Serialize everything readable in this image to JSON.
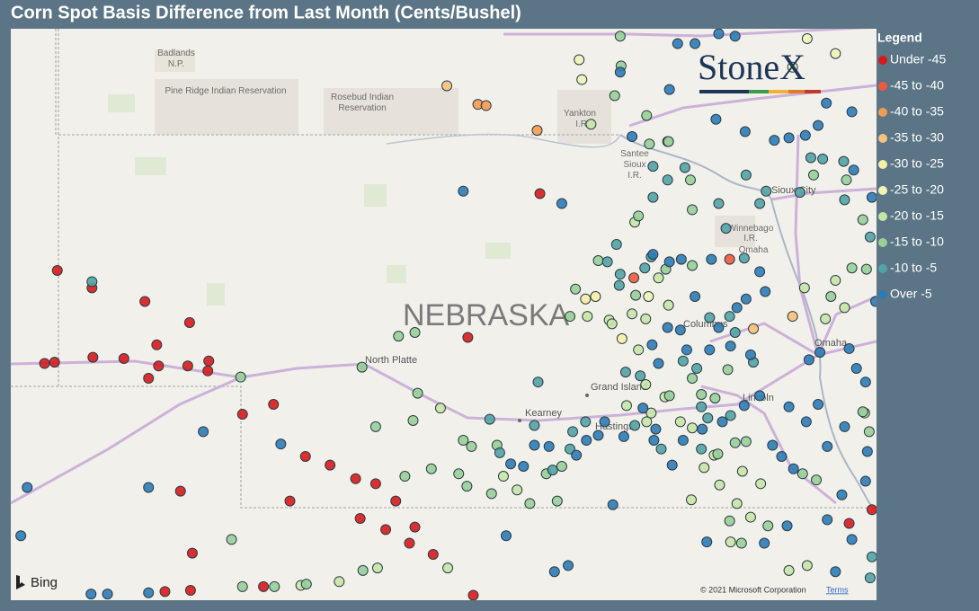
{
  "title": "Corn Spot Basis Difference from Last Month (Cents/Bushel)",
  "legend": {
    "title": "Legend",
    "items": [
      {
        "label": "Under -45",
        "color": "#d7191c"
      },
      {
        "label": "-45 to -40",
        "color": "#ef5a3c"
      },
      {
        "label": "-40 to -35",
        "color": "#f59a52"
      },
      {
        "label": "-35 to -30",
        "color": "#f8c27a"
      },
      {
        "label": "-30 to -25",
        "color": "#f7eeaa"
      },
      {
        "label": "-25 to -20",
        "color": "#eef4b8"
      },
      {
        "label": "-20 to -15",
        "color": "#c6e6a6"
      },
      {
        "label": "-15 to -10",
        "color": "#97cf98"
      },
      {
        "label": "-10 to -5",
        "color": "#52a3a6"
      },
      {
        "label": "Over -5",
        "color": "#2c7bb6"
      }
    ]
  },
  "logo": "StoneX",
  "attribution": {
    "provider": "Bing",
    "copyright": "© 2021 Microsoft Corporation",
    "terms": "Terms"
  },
  "map": {
    "bounds": {
      "west": -104.57,
      "east": -95.08,
      "north": 43.86,
      "south": 39.25
    },
    "places": [
      {
        "label": "Badlands"
      },
      {
        "label": "N.P."
      },
      {
        "label": "Pine Ridge Indian Reservation"
      },
      {
        "label": "Rosebud Indian"
      },
      {
        "label": "Reservation"
      },
      {
        "label": "Yankton"
      },
      {
        "label": "I.R."
      },
      {
        "label": "Santee"
      },
      {
        "label": "Sioux"
      },
      {
        "label": "I.R."
      },
      {
        "label": "Sioux City"
      },
      {
        "label": "Winnebago"
      },
      {
        "label": "I.R."
      },
      {
        "label": "Omaha"
      },
      {
        "label": "NEBRASKA"
      },
      {
        "label": "North Platte"
      },
      {
        "label": "Columbus"
      },
      {
        "label": "Omaha"
      },
      {
        "label": "Grand Island"
      },
      {
        "label": "Kearney"
      },
      {
        "label": "Hastings"
      },
      {
        "label": "Lincoln"
      }
    ],
    "points": [
      [
        -104.06,
        41.91,
        0
      ],
      [
        -103.68,
        41.77,
        0
      ],
      [
        -103.1,
        41.66,
        0
      ],
      [
        -102.61,
        41.49,
        0
      ],
      [
        -102.97,
        41.31,
        0
      ],
      [
        -104.2,
        41.16,
        0
      ],
      [
        -104.09,
        41.17,
        0
      ],
      [
        -103.67,
        41.21,
        0
      ],
      [
        -103.33,
        41.2,
        0
      ],
      [
        -102.95,
        41.14,
        0
      ],
      [
        -102.63,
        41.14,
        0
      ],
      [
        -102.4,
        41.18,
        0
      ],
      [
        -102.41,
        41.1,
        0
      ],
      [
        -103.06,
        41.04,
        0
      ],
      [
        -102.03,
        40.75,
        0
      ],
      [
        -101.69,
        40.83,
        0
      ],
      [
        -101.34,
        40.41,
        0
      ],
      [
        -101.07,
        40.34,
        0
      ],
      [
        -100.79,
        40.23,
        0
      ],
      [
        -100.57,
        40.19,
        0
      ],
      [
        -100.35,
        40.05,
        0
      ],
      [
        -101.51,
        40.05,
        0
      ],
      [
        -100.74,
        39.91,
        0
      ],
      [
        -100.14,
        39.84,
        0
      ],
      [
        -100.2,
        39.71,
        0
      ],
      [
        -99.94,
        39.62,
        0
      ],
      [
        -100.46,
        39.82,
        0
      ],
      [
        -102.71,
        40.13,
        0
      ],
      [
        -102.58,
        39.63,
        0
      ],
      [
        -102.88,
        39.32,
        0
      ],
      [
        -102.6,
        39.33,
        0
      ],
      [
        -101.8,
        39.36,
        0
      ],
      [
        -98.77,
        42.53,
        0
      ],
      [
        -99.56,
        41.37,
        0
      ],
      [
        -99.5,
        39.29,
        0
      ],
      [
        -95.38,
        39.87,
        0
      ],
      [
        -95.13,
        39.98,
        0
      ],
      [
        -97.74,
        41.85,
        1
      ],
      [
        -96.69,
        42.0,
        1
      ],
      [
        -99.45,
        43.25,
        2
      ],
      [
        -99.36,
        43.24,
        2
      ],
      [
        -98.8,
        43.04,
        2
      ],
      [
        -99.79,
        43.4,
        3
      ],
      [
        -96.0,
        41.54,
        3
      ],
      [
        -96.43,
        41.44,
        3
      ],
      [
        -98.27,
        41.68,
        4
      ],
      [
        -98.16,
        41.7,
        4
      ],
      [
        -97.87,
        41.36,
        4
      ],
      [
        -98.34,
        43.61,
        5
      ],
      [
        -98.31,
        43.45,
        5
      ],
      [
        -95.84,
        43.78,
        5
      ],
      [
        -95.53,
        43.66,
        5
      ],
      [
        -96.0,
        43.55,
        5
      ],
      [
        -97.58,
        41.7,
        5
      ],
      [
        -98.21,
        43.09,
        6
      ],
      [
        -97.37,
        42.95,
        6
      ],
      [
        -97.73,
        42.3,
        6
      ],
      [
        -97.47,
        41.85,
        6
      ],
      [
        -98.01,
        41.51,
        6
      ],
      [
        -98.25,
        41.54,
        6
      ],
      [
        -97.36,
        41.63,
        6
      ],
      [
        -97.61,
        41.52,
        6
      ],
      [
        -97.76,
        41.56,
        6
      ],
      [
        -97.98,
        41.48,
        6
      ],
      [
        -97.69,
        41.27,
        6
      ],
      [
        -97.61,
        40.99,
        6
      ],
      [
        -97.4,
        40.89,
        6
      ],
      [
        -97.55,
        40.76,
        6
      ],
      [
        -97.82,
        40.82,
        6
      ],
      [
        -97.6,
        40.69,
        6
      ],
      [
        -97.23,
        40.69,
        6
      ],
      [
        -97.1,
        40.64,
        6
      ],
      [
        -96.97,
        40.32,
        6
      ],
      [
        -96.8,
        40.18,
        6
      ],
      [
        -96.61,
        40.03,
        6
      ],
      [
        -96.46,
        39.92,
        6
      ],
      [
        -96.68,
        39.72,
        6
      ],
      [
        -97.11,
        40.06,
        6
      ],
      [
        -96.35,
        40.19,
        6
      ],
      [
        -96.55,
        40.29,
        6
      ],
      [
        -96.86,
        40.42,
        6
      ],
      [
        -96.04,
        39.49,
        6
      ],
      [
        -95.84,
        39.53,
        6
      ],
      [
        -99.17,
        40.25,
        6
      ],
      [
        -99.02,
        40.14,
        6
      ],
      [
        -99.86,
        40.8,
        6
      ],
      [
        -100.55,
        39.51,
        6
      ],
      [
        -100.97,
        39.4,
        6
      ],
      [
        -101.39,
        39.37,
        6
      ],
      [
        -99.78,
        39.51,
        6
      ],
      [
        -95.21,
        40.76,
        6
      ],
      [
        -95.87,
        41.77,
        6
      ],
      [
        -95.53,
        41.83,
        6
      ],
      [
        -95.64,
        41.52,
        6
      ],
      [
        -95.43,
        41.61,
        6
      ],
      [
        -102.05,
        41.05,
        7
      ],
      [
        -100.11,
        40.92,
        7
      ],
      [
        -100.32,
        41.38,
        7
      ],
      [
        -100.14,
        41.41,
        7
      ],
      [
        -100.72,
        41.13,
        7
      ],
      [
        -100.57,
        40.65,
        7
      ],
      [
        -100.16,
        40.7,
        7
      ],
      [
        -99.61,
        40.54,
        7
      ],
      [
        -99.52,
        40.49,
        7
      ],
      [
        -99.24,
        40.5,
        7
      ],
      [
        -100.25,
        40.25,
        7
      ],
      [
        -99.96,
        40.31,
        7
      ],
      [
        -99.66,
        40.27,
        7
      ],
      [
        -99.57,
        40.17,
        7
      ],
      [
        -99.3,
        40.11,
        7
      ],
      [
        -98.88,
        40.03,
        7
      ],
      [
        -98.58,
        40.05,
        7
      ],
      [
        -98.7,
        40.27,
        7
      ],
      [
        -98.53,
        40.33,
        7
      ],
      [
        -97.89,
        43.8,
        7
      ],
      [
        -97.88,
        43.56,
        7
      ],
      [
        -97.95,
        43.32,
        7
      ],
      [
        -97.6,
        43.16,
        7
      ],
      [
        -97.57,
        42.93,
        7
      ],
      [
        -97.36,
        42.95,
        7
      ],
      [
        -97.12,
        42.64,
        7
      ],
      [
        -97.69,
        42.35,
        7
      ],
      [
        -97.1,
        42.4,
        7
      ],
      [
        -98.38,
        41.76,
        7
      ],
      [
        -98.44,
        41.54,
        7
      ],
      [
        -98.13,
        41.99,
        7
      ],
      [
        -97.72,
        41.71,
        7
      ],
      [
        -97.39,
        41.92,
        7
      ],
      [
        -97.1,
        41.95,
        7
      ],
      [
        -97.1,
        41.04,
        7
      ],
      [
        -97.35,
        40.9,
        7
      ],
      [
        -97.0,
        40.91,
        7
      ],
      [
        -96.85,
        40.88,
        7
      ],
      [
        -96.71,
        41.11,
        7
      ],
      [
        -96.82,
        40.43,
        7
      ],
      [
        -96.63,
        40.52,
        7
      ],
      [
        -96.51,
        40.53,
        7
      ],
      [
        -96.69,
        39.89,
        7
      ],
      [
        -96.56,
        39.71,
        7
      ],
      [
        -96.27,
        39.85,
        7
      ],
      [
        -95.89,
        40.27,
        7
      ],
      [
        -95.74,
        40.22,
        7
      ],
      [
        -102.15,
        39.74,
        7
      ],
      [
        -100.71,
        39.49,
        7
      ],
      [
        -101.33,
        39.38,
        7
      ],
      [
        -101.68,
        39.36,
        7
      ],
      [
        -102.03,
        39.36,
        7
      ],
      [
        -95.16,
        40.61,
        7
      ],
      [
        -95.23,
        40.77,
        7
      ],
      [
        -95.77,
        42.68,
        7
      ],
      [
        -95.41,
        42.64,
        7
      ],
      [
        -95.23,
        42.32,
        7
      ],
      [
        -95.19,
        41.92,
        7
      ],
      [
        -95.35,
        41.93,
        7
      ],
      [
        -95.58,
        41.7,
        7
      ],
      [
        -103.68,
        41.82,
        8
      ],
      [
        -98.79,
        41.01,
        8
      ],
      [
        -97.93,
        42.12,
        8
      ],
      [
        -97.89,
        41.88,
        8
      ],
      [
        -98.03,
        41.98,
        8
      ],
      [
        -97.62,
        41.93,
        8
      ],
      [
        -97.55,
        42.02,
        8
      ],
      [
        -97.9,
        41.79,
        8
      ],
      [
        -97.53,
        42.5,
        8
      ],
      [
        -97.37,
        42.64,
        8
      ],
      [
        -97.18,
        42.74,
        8
      ],
      [
        -97.53,
        42.75,
        8
      ],
      [
        -96.73,
        42.25,
        8
      ],
      [
        -96.51,
        42.68,
        8
      ],
      [
        -96.29,
        42.55,
        8
      ],
      [
        -96.36,
        42.45,
        8
      ],
      [
        -96.81,
        42.45,
        8
      ],
      [
        -95.92,
        42.54,
        8
      ],
      [
        -95.8,
        42.82,
        8
      ],
      [
        -95.67,
        42.81,
        8
      ],
      [
        -95.44,
        42.79,
        8
      ],
      [
        -95.43,
        42.48,
        8
      ],
      [
        -95.15,
        42.18,
        8
      ],
      [
        -96.53,
        42.01,
        8
      ],
      [
        -96.69,
        41.54,
        8
      ],
      [
        -96.91,
        41.53,
        8
      ],
      [
        -96.63,
        41.41,
        8
      ],
      [
        -96.43,
        41.17,
        8
      ],
      [
        -97.05,
        41.12,
        8
      ],
      [
        -97.2,
        41.18,
        8
      ],
      [
        -97.83,
        41.09,
        8
      ],
      [
        -97.67,
        41.06,
        8
      ],
      [
        -97.0,
        40.81,
        8
      ],
      [
        -96.93,
        40.72,
        8
      ],
      [
        -96.68,
        40.74,
        8
      ],
      [
        -97.0,
        40.47,
        8
      ],
      [
        -97.44,
        40.47,
        8
      ],
      [
        -97.73,
        40.66,
        8
      ],
      [
        -98.27,
        40.69,
        8
      ],
      [
        -98.41,
        40.61,
        8
      ],
      [
        -98.44,
        40.47,
        8
      ],
      [
        -99.32,
        40.71,
        8
      ],
      [
        -99.21,
        40.44,
        8
      ],
      [
        -98.63,
        40.3,
        8
      ],
      [
        -98.83,
        40.66,
        8
      ],
      [
        -95.13,
        39.6,
        8
      ],
      [
        -95.15,
        39.43,
        8
      ],
      [
        -99.61,
        42.55,
        9
      ],
      [
        -98.53,
        42.45,
        9
      ],
      [
        -102.46,
        40.61,
        9
      ],
      [
        -103.06,
        40.16,
        9
      ],
      [
        -104.39,
        40.16,
        9
      ],
      [
        -104.46,
        39.77,
        9
      ],
      [
        -103.69,
        39.3,
        9
      ],
      [
        -103.51,
        39.3,
        9
      ],
      [
        -103.06,
        39.31,
        9
      ],
      [
        -101.61,
        40.51,
        9
      ],
      [
        -99.14,
        39.77,
        9
      ],
      [
        -98.46,
        39.53,
        9
      ],
      [
        -98.61,
        39.48,
        9
      ],
      [
        -97.97,
        40.02,
        9
      ],
      [
        -97.54,
        41.31,
        9
      ],
      [
        -97.47,
        41.16,
        9
      ],
      [
        -97.64,
        40.8,
        9
      ],
      [
        -97.2,
        40.54,
        9
      ],
      [
        -97.32,
        40.34,
        9
      ],
      [
        -96.94,
        39.72,
        9
      ],
      [
        -96.31,
        39.71,
        9
      ],
      [
        -96.06,
        39.85,
        9
      ],
      [
        -95.62,
        39.9,
        9
      ],
      [
        -95.35,
        39.74,
        9
      ],
      [
        -95.53,
        39.48,
        9
      ],
      [
        -97.89,
        43.51,
        9
      ],
      [
        -97.76,
        42.99,
        9
      ],
      [
        -97.26,
        43.74,
        9
      ],
      [
        -97.07,
        43.74,
        9
      ],
      [
        -96.81,
        43.82,
        9
      ],
      [
        -96.63,
        43.8,
        9
      ],
      [
        -97.35,
        43.37,
        9
      ],
      [
        -96.84,
        43.13,
        9
      ],
      [
        -96.52,
        43.03,
        9
      ],
      [
        -96.2,
        42.96,
        9
      ],
      [
        -96.04,
        42.98,
        9
      ],
      [
        -95.86,
        43.0,
        9
      ],
      [
        -95.72,
        43.08,
        9
      ],
      [
        -95.63,
        43.26,
        9
      ],
      [
        -95.35,
        43.19,
        9
      ],
      [
        -95.33,
        42.72,
        9
      ],
      [
        -95.13,
        42.5,
        9
      ],
      [
        -95.3,
        41.12,
        9
      ],
      [
        -95.2,
        41.01,
        9
      ],
      [
        -95.62,
        40.49,
        9
      ],
      [
        -95.99,
        40.31,
        9
      ],
      [
        -96.12,
        40.41,
        9
      ],
      [
        -96.22,
        40.5,
        9
      ],
      [
        -95.85,
        40.69,
        9
      ],
      [
        -96.04,
        40.81,
        9
      ],
      [
        -95.72,
        40.83,
        9
      ],
      [
        -95.43,
        40.65,
        9
      ],
      [
        -95.18,
        40.45,
        9
      ],
      [
        -95.2,
        40.21,
        9
      ],
      [
        -95.46,
        40.1,
        9
      ],
      [
        -96.81,
        41.45,
        9
      ],
      [
        -96.91,
        41.27,
        9
      ],
      [
        -96.68,
        41.3,
        9
      ],
      [
        -96.46,
        41.23,
        9
      ],
      [
        -96.36,
        40.9,
        9
      ],
      [
        -96.53,
        40.82,
        9
      ],
      [
        -96.77,
        40.69,
        9
      ],
      [
        -96.99,
        40.63,
        9
      ],
      [
        -97.5,
        40.63,
        9
      ],
      [
        -97.52,
        40.54,
        9
      ],
      [
        -97.85,
        40.57,
        9
      ],
      [
        -98.13,
        40.58,
        9
      ],
      [
        -98.26,
        40.54,
        9
      ],
      [
        -98.37,
        40.42,
        9
      ],
      [
        -98.83,
        40.5,
        9
      ],
      [
        -99.09,
        40.35,
        9
      ],
      [
        -98.95,
        40.33,
        9
      ],
      [
        -98.67,
        40.49,
        9
      ],
      [
        -98.06,
        40.69,
        9
      ],
      [
        -97.35,
        41.98,
        9
      ],
      [
        -97.53,
        42.04,
        9
      ],
      [
        -97.22,
        42.0,
        9
      ],
      [
        -96.89,
        42.0,
        9
      ],
      [
        -96.36,
        41.9,
        9
      ],
      [
        -96.3,
        41.74,
        9
      ],
      [
        -96.51,
        41.68,
        9
      ],
      [
        -96.61,
        41.61,
        9
      ],
      [
        -97.07,
        41.7,
        9
      ],
      [
        -97.37,
        41.45,
        9
      ],
      [
        -97.23,
        41.43,
        9
      ],
      [
        -97.16,
        41.27,
        9
      ],
      [
        -95.82,
        41.19,
        9
      ],
      [
        -95.7,
        41.25,
        9
      ],
      [
        -95.38,
        41.28,
        9
      ],
      [
        -95.09,
        41.66,
        9
      ]
    ]
  }
}
